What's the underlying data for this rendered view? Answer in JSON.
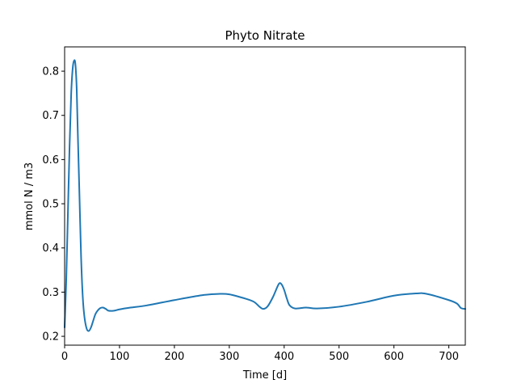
{
  "colors": {
    "line": "#1f77b4",
    "axes": "#000000",
    "background": "#ffffff"
  },
  "chart_data": {
    "type": "line",
    "title": "Phyto Nitrate",
    "xlabel": "Time [d]",
    "ylabel": "mmol N / m3",
    "xlim": [
      0,
      730
    ],
    "ylim": [
      0.18,
      0.855
    ],
    "xticks": [
      0,
      100,
      200,
      300,
      400,
      500,
      600,
      700
    ],
    "yticks": [
      0.2,
      0.3,
      0.4,
      0.5,
      0.6,
      0.7,
      0.8
    ],
    "grid": false,
    "legend": "none",
    "series": [
      {
        "x": [
          0,
          3,
          6,
          9,
          12,
          15,
          18,
          20,
          22,
          24,
          27,
          30,
          33,
          36,
          40,
          44,
          48,
          52,
          56,
          60,
          65,
          70,
          75,
          80,
          90,
          100,
          120,
          150,
          200,
          250,
          280,
          300,
          330,
          345,
          355,
          362,
          370,
          380,
          390,
          395,
          400,
          405,
          410,
          420,
          440,
          460,
          500,
          550,
          600,
          640,
          660,
          700,
          715,
          722,
          730
        ],
        "y": [
          0.22,
          0.33,
          0.48,
          0.63,
          0.75,
          0.81,
          0.825,
          0.81,
          0.76,
          0.66,
          0.52,
          0.38,
          0.29,
          0.245,
          0.218,
          0.212,
          0.22,
          0.235,
          0.25,
          0.258,
          0.264,
          0.265,
          0.262,
          0.258,
          0.258,
          0.261,
          0.265,
          0.27,
          0.282,
          0.293,
          0.296,
          0.295,
          0.285,
          0.278,
          0.267,
          0.262,
          0.268,
          0.29,
          0.318,
          0.318,
          0.305,
          0.285,
          0.27,
          0.263,
          0.265,
          0.263,
          0.267,
          0.278,
          0.292,
          0.297,
          0.296,
          0.282,
          0.274,
          0.264,
          0.262
        ]
      }
    ]
  }
}
